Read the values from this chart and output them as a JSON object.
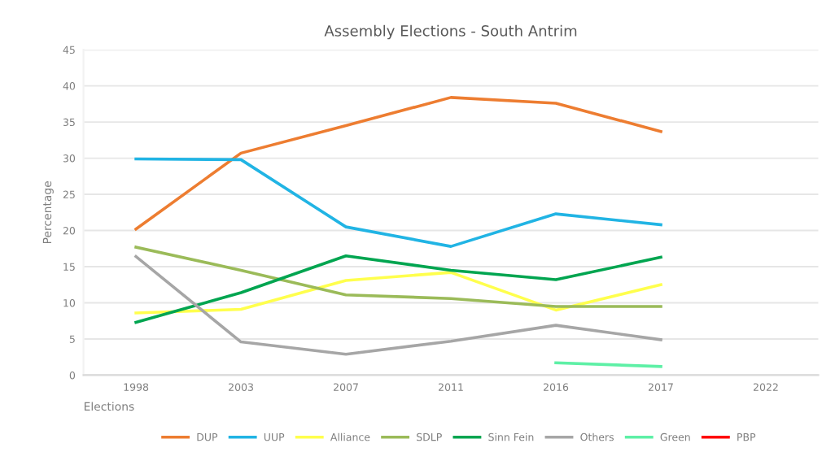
{
  "chart_data": {
    "type": "line",
    "title": "Assembly Elections - South Antrim",
    "xlabel": "Elections",
    "ylabel": "Percentage",
    "categories": [
      "1998",
      "2003",
      "2007",
      "2011",
      "2016",
      "2017",
      "2022"
    ],
    "series": [
      {
        "name": "DUP",
        "color": "#ed7d31",
        "values": [
          20.2,
          30.7,
          34.5,
          38.4,
          37.6,
          33.7,
          null
        ]
      },
      {
        "name": "UUP",
        "color": "#21b4e4",
        "values": [
          29.9,
          29.8,
          20.5,
          17.8,
          22.3,
          20.8,
          null
        ]
      },
      {
        "name": "Alliance",
        "color": "#ffff4d",
        "values": [
          8.6,
          9.1,
          13.1,
          14.2,
          9.0,
          12.5,
          null
        ]
      },
      {
        "name": "SDLP",
        "color": "#9bbb59",
        "values": [
          17.7,
          14.5,
          11.1,
          10.6,
          9.5,
          9.5,
          null
        ]
      },
      {
        "name": "Sinn Fein",
        "color": "#00a550",
        "values": [
          7.3,
          11.4,
          16.5,
          14.5,
          13.2,
          16.3,
          null
        ]
      },
      {
        "name": "Others",
        "color": "#a6a6a6",
        "values": [
          16.4,
          4.6,
          2.9,
          4.7,
          6.9,
          4.9,
          null
        ]
      },
      {
        "name": "Green",
        "color": "#5ef0a6",
        "values": [
          null,
          null,
          null,
          null,
          1.7,
          1.2,
          null
        ]
      },
      {
        "name": "PBP",
        "color": "#ff0000",
        "values": [
          null,
          null,
          null,
          null,
          null,
          null,
          null
        ]
      }
    ],
    "ylim": [
      0,
      45
    ],
    "yticks": [
      0,
      5,
      10,
      15,
      20,
      25,
      30,
      35,
      40,
      45
    ],
    "grid": "y",
    "legend": "bottom",
    "marker": "none",
    "line_style": "solid"
  }
}
